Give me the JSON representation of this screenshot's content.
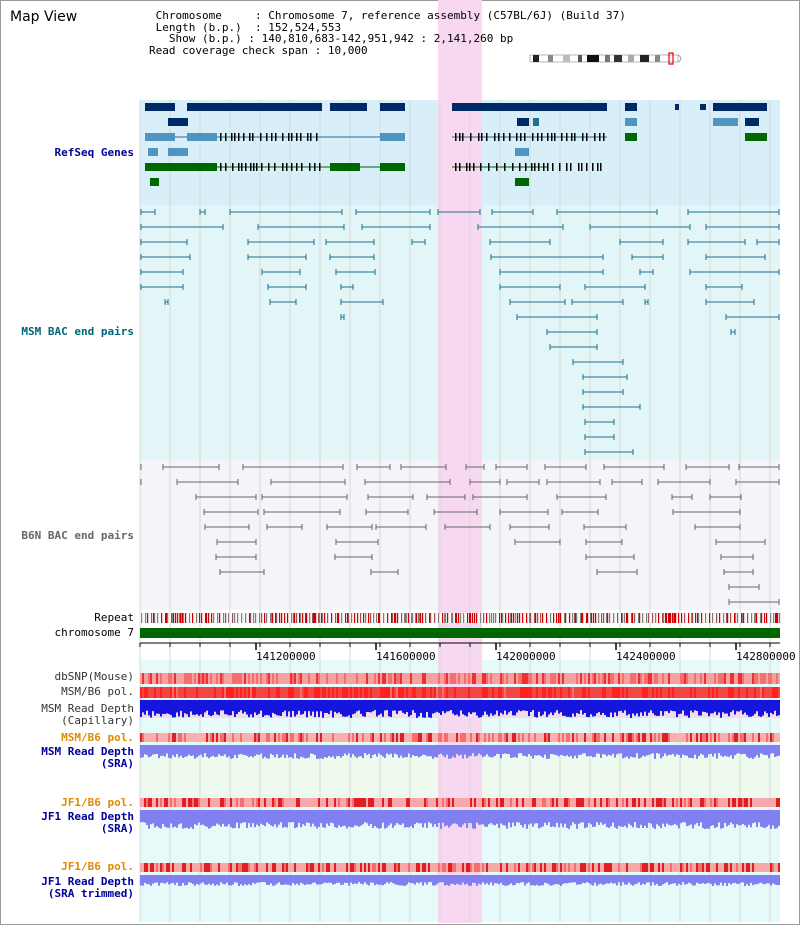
{
  "title": "Map View",
  "info": {
    "chromosome_label": "Chromosome",
    "chromosome_value": "Chromosome 7, reference assembly (C57BL/6J) (Build 37)",
    "length_label": "Length (b.p.)",
    "length_value": "152,524,553",
    "show_label": "Show (b.p.)",
    "show_value": "140,810,683-142,951,942 : 2,141,260 bp",
    "coverage_label": "Read coverage check span",
    "coverage_value": "10,000"
  },
  "tracks": {
    "refseq": "RefSeq Genes",
    "msm_bac": "MSM BAC end pairs",
    "b6n_bac": "B6N BAC end pairs",
    "repeat": "Repeat",
    "chromosome": "chromosome 7",
    "dbsnp": "dbSNP(Mouse)",
    "msm_pol": "MSM/B6 pol.",
    "msm_depth_cap_1": "MSM Read Depth",
    "msm_depth_cap_2": "(Capillary)",
    "msm_pol_2": "MSM/B6 pol.",
    "msm_depth_sra_1": "MSM Read Depth",
    "msm_depth_sra_2": "(SRA)",
    "jf1_pol": "JF1/B6 pol.",
    "jf1_depth_1": "JF1 Read Depth",
    "jf1_depth_2": "(SRA)",
    "jf1_pol_2": "JF1/B6 pol.",
    "jf1_trim_1": "JF1 Read Depth",
    "jf1_trim_2": "(SRA trimmed)"
  },
  "axis": {
    "ticks": [
      {
        "pos": 141200000,
        "label": "141200000"
      },
      {
        "pos": 141600000,
        "label": "141600000"
      },
      {
        "pos": 142000000,
        "label": "142000000"
      },
      {
        "pos": 142400000,
        "label": "142400000"
      },
      {
        "pos": 142800000,
        "label": "142800000"
      }
    ]
  },
  "colors": {
    "refseq_bg": "#d8eef8",
    "msm_bg": "#e2f6f8",
    "b6n_bg": "#f4f5f8",
    "highlight": "#f8d8f0",
    "chromosome_bar": "#006600",
    "gene_dark": "#002a66",
    "gene_light": "#4f95c0",
    "gene_green": "#006600",
    "msm_line": "#1f6f8f",
    "b6n_line": "#666666",
    "depth_blue": "#1010dd",
    "depth_sra": "#8080f0",
    "pol_red": "#f03c3c",
    "pol_pink": "#f8a0a0"
  }
}
